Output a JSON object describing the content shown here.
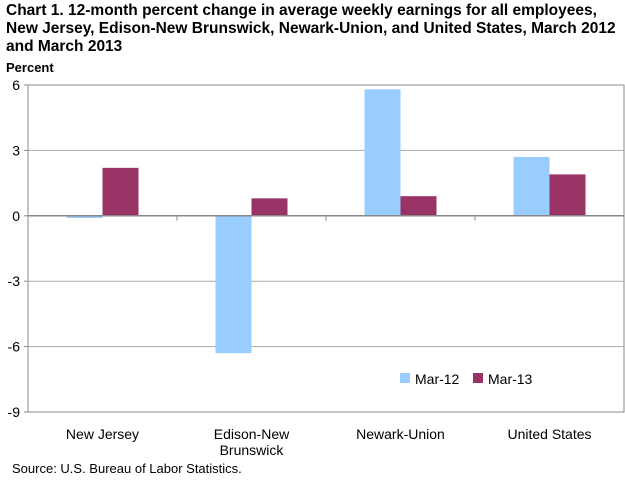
{
  "chart_data": {
    "type": "bar",
    "title": "Chart 1.  12-month percent change in average weekly earnings for all employees, New Jersey, Edison-New Brunswick, Newark-Union, and United States, March 2012 and March 2013",
    "ylabel": "Percent",
    "xlabel": "",
    "ylim": [
      -9,
      6
    ],
    "yticks": [
      6,
      3,
      0,
      -3,
      -6,
      -9
    ],
    "ytick_labels": [
      "6",
      "3",
      "0",
      "-3",
      "-6",
      "-9"
    ],
    "categories": [
      [
        "New Jersey"
      ],
      [
        "Edison-New",
        "Brunswick"
      ],
      [
        "Newark-Union"
      ],
      [
        "United States"
      ]
    ],
    "series": [
      {
        "name": "Mar-12",
        "color": "#99ccff",
        "values": [
          -0.1,
          -6.3,
          5.8,
          2.7
        ]
      },
      {
        "name": "Mar-13",
        "color": "#993366",
        "values": [
          2.2,
          0.8,
          0.9,
          1.9
        ]
      }
    ],
    "grid": true,
    "legend": "bottom-right",
    "source": "Source: U.S. Bureau of Labor Statistics."
  }
}
